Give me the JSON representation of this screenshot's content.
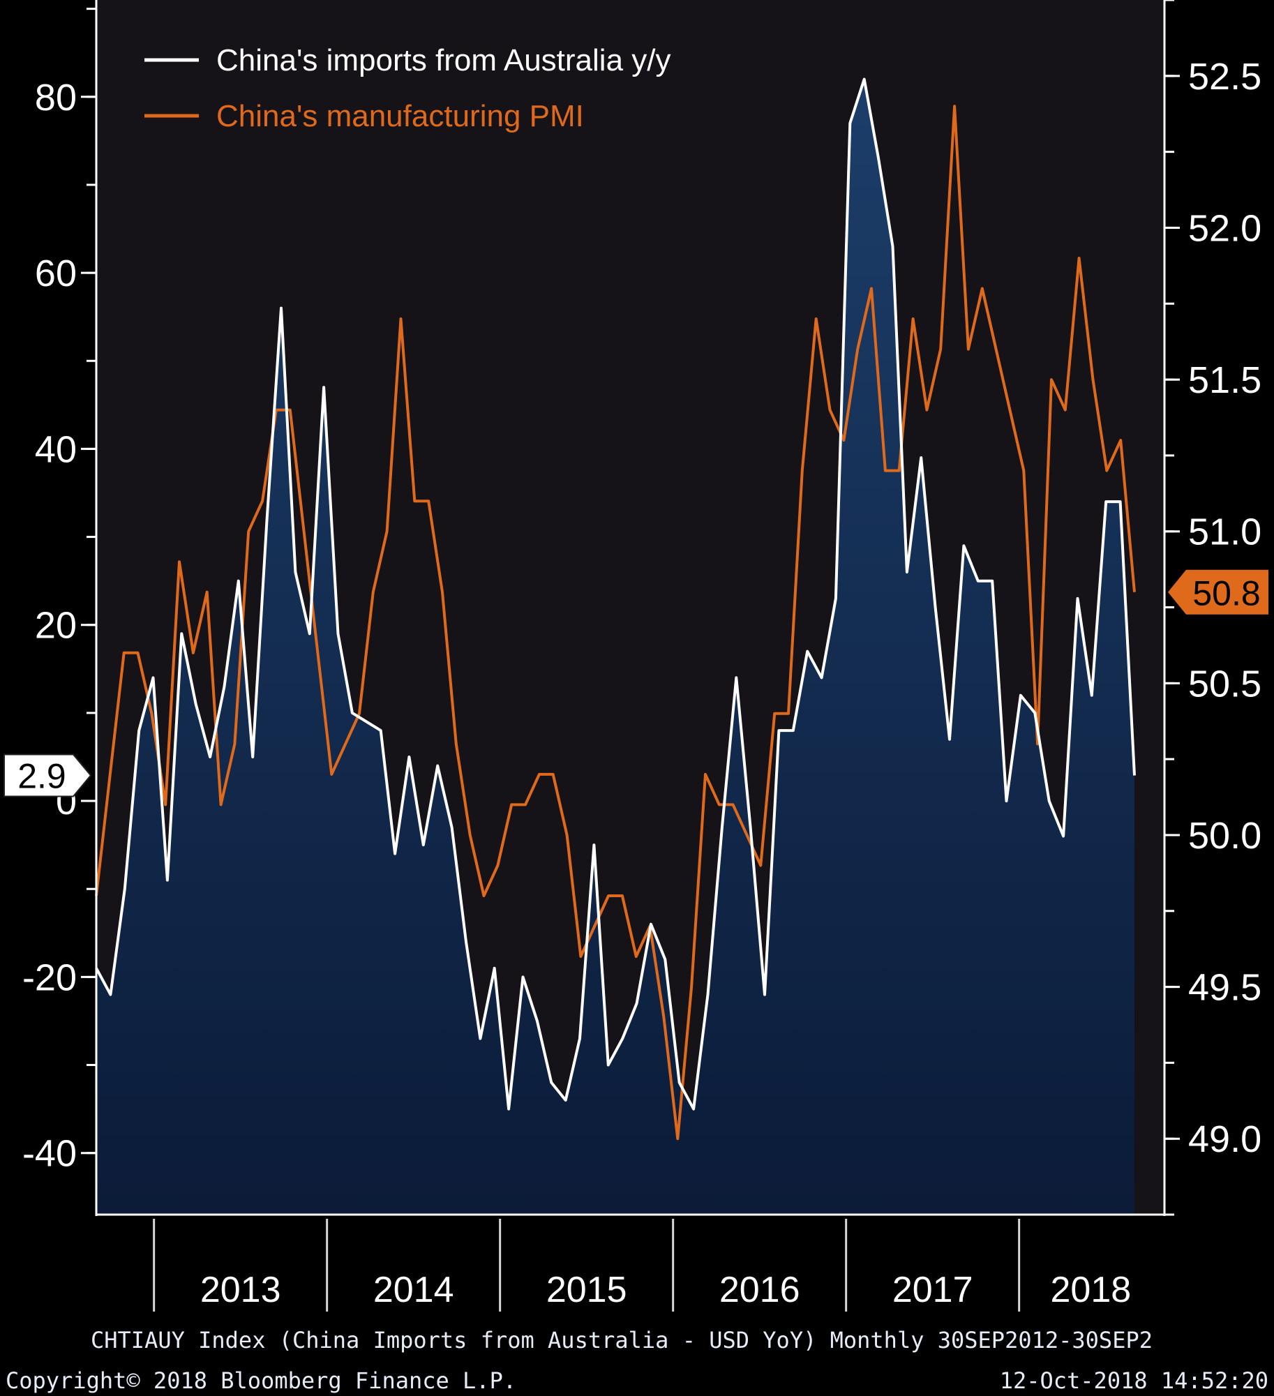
{
  "chart_data": {
    "type": "line",
    "title": "",
    "x_start": "2012-09",
    "x_end": "2018-09",
    "x_labels": [
      "2013",
      "2014",
      "2015",
      "2016",
      "2017",
      "2018"
    ],
    "left_axis": {
      "label": "",
      "range": [
        -47,
        91
      ],
      "ticks": [
        "-40",
        "-20",
        "0",
        "20",
        "40",
        "60",
        "80"
      ],
      "tick_values": [
        -40,
        -20,
        0,
        20,
        40,
        60,
        80
      ]
    },
    "right_axis": {
      "label": "",
      "range": [
        48.75,
        52.75
      ],
      "ticks": [
        "49.0",
        "49.5",
        "50.0",
        "50.5",
        "51.0",
        "51.5",
        "52.0",
        "52.5"
      ],
      "tick_values": [
        49.0,
        49.5,
        50.0,
        50.5,
        51.0,
        51.5,
        52.0,
        52.5
      ]
    },
    "series": [
      {
        "name": "China's imports from Australia y/y",
        "axis": "left",
        "style": "area",
        "color": "#ffffff",
        "fill_top": "#1c3e6a",
        "fill_bottom": "#0a1a36",
        "values": [
          -19,
          -22,
          -10,
          8,
          14,
          -9,
          19,
          11,
          5,
          13,
          25,
          5,
          32,
          56,
          26,
          19,
          47,
          19,
          10,
          9,
          8,
          -6,
          5,
          -5,
          4,
          -3,
          -16,
          -27,
          -19,
          -35,
          -20,
          -25,
          -32,
          -34,
          -27,
          -5,
          -30,
          -27,
          -23,
          -14,
          -18,
          -32,
          -35,
          -22,
          -3,
          14,
          -3,
          -22,
          8,
          8,
          17,
          14,
          23,
          77,
          82,
          73,
          63,
          26,
          39,
          22,
          7,
          29,
          25,
          25,
          0,
          12,
          10,
          0,
          -4,
          23,
          12,
          34,
          34,
          2.9
        ]
      },
      {
        "name": "China's manufacturing PMI",
        "axis": "right",
        "style": "line",
        "color": "#e06a1c",
        "values": [
          49.8,
          50.2,
          50.6,
          50.6,
          50.4,
          50.1,
          50.9,
          50.6,
          50.8,
          50.1,
          50.3,
          51.0,
          51.1,
          51.4,
          51.4,
          51.0,
          50.6,
          50.2,
          50.3,
          50.4,
          50.8,
          51.0,
          51.7,
          51.1,
          51.1,
          50.8,
          50.3,
          50.0,
          49.8,
          49.9,
          50.1,
          50.1,
          50.2,
          50.2,
          50.0,
          49.6,
          49.7,
          49.8,
          49.8,
          49.6,
          49.7,
          49.4,
          49.0,
          49.5,
          50.2,
          50.1,
          50.1,
          50.0,
          49.9,
          50.4,
          50.4,
          51.2,
          51.7,
          51.4,
          51.3,
          51.6,
          51.8,
          51.2,
          51.2,
          51.7,
          51.4,
          51.6,
          52.4,
          51.6,
          51.8,
          51.6,
          51.4,
          51.2,
          50.3,
          51.5,
          51.4,
          51.9,
          51.5,
          51.2,
          51.3,
          50.8
        ]
      }
    ],
    "last_value_labels": {
      "left": "2.9",
      "right": "50.8"
    },
    "legend": {
      "placement": "top-left",
      "items": [
        "China's imports from Australia y/y",
        "China's manufacturing PMI"
      ]
    },
    "grid": false
  },
  "footer": {
    "description": "CHTIAUY Index (China Imports from Australia - USD YoY)  Monthly 30SEP2012-30SEP2",
    "copyright": "Copyright© 2018 Bloomberg Finance L.P.",
    "timestamp": "12-Oct-2018 14:52:20"
  },
  "colors": {
    "background": "#000000",
    "plot_background": "#151218",
    "axis": "#ffffff",
    "pmi": "#e06a1c",
    "imports_line": "#ffffff"
  }
}
